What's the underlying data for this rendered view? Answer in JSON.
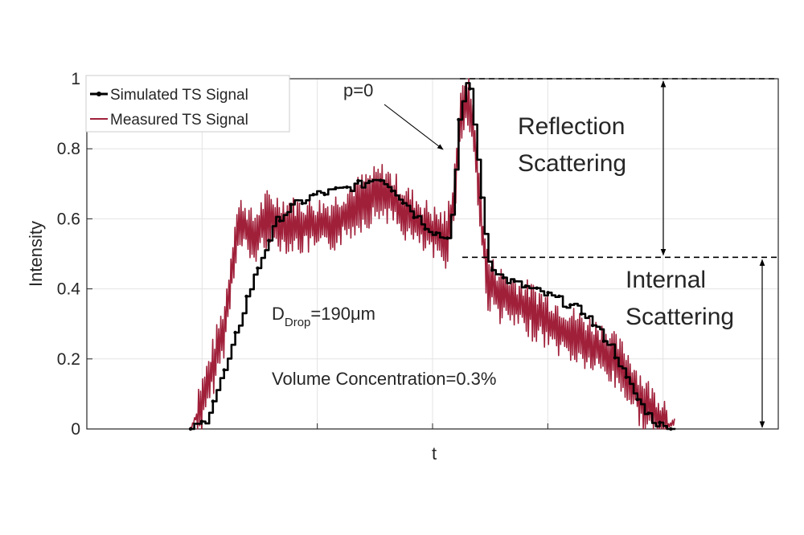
{
  "chart_data": {
    "type": "line",
    "xlabel": "t",
    "ylabel": "Intensity",
    "ylim": [
      0,
      1
    ],
    "yticks": [
      "0",
      "0.2",
      "0.4",
      "0.6",
      "0.8",
      "1"
    ],
    "grid": true,
    "legend_position": "top-left",
    "series": [
      {
        "name": "Simulated TS Signal",
        "color": "#000000",
        "marker": "dot",
        "anchors_t": [
          0.15,
          0.17,
          0.205,
          0.23,
          0.25,
          0.275,
          0.3,
          0.33,
          0.36,
          0.4,
          0.42,
          0.44,
          0.47,
          0.495,
          0.52,
          0.528,
          0.538,
          0.545,
          0.55,
          0.556,
          0.565,
          0.58,
          0.6,
          0.64,
          0.68,
          0.72,
          0.76,
          0.78,
          0.8,
          0.82,
          0.835,
          0.85
        ],
        "anchors_y": [
          0.0,
          0.02,
          0.2,
          0.37,
          0.48,
          0.6,
          0.64,
          0.67,
          0.68,
          0.7,
          0.72,
          0.69,
          0.62,
          0.57,
          0.54,
          0.62,
          0.88,
          0.96,
          1.0,
          0.95,
          0.75,
          0.48,
          0.43,
          0.4,
          0.37,
          0.33,
          0.23,
          0.14,
          0.07,
          0.02,
          0.003,
          0.0
        ]
      },
      {
        "name": "Measured TS Signal",
        "color": "#a0203a",
        "marker": "none",
        "anchors_t": [
          0.15,
          0.17,
          0.2,
          0.215,
          0.225,
          0.24,
          0.26,
          0.3,
          0.35,
          0.4,
          0.43,
          0.46,
          0.5,
          0.52,
          0.53,
          0.54,
          0.548,
          0.552,
          0.56,
          0.57,
          0.58,
          0.6,
          0.65,
          0.7,
          0.75,
          0.78,
          0.8,
          0.82,
          0.84,
          0.85
        ],
        "anchors_y": [
          0.0,
          0.09,
          0.3,
          0.55,
          0.59,
          0.54,
          0.6,
          0.58,
          0.58,
          0.65,
          0.68,
          0.62,
          0.56,
          0.54,
          0.65,
          0.87,
          0.95,
          0.93,
          0.85,
          0.6,
          0.42,
          0.38,
          0.33,
          0.27,
          0.22,
          0.16,
          0.09,
          0.04,
          0.01,
          0.02
        ]
      }
    ]
  },
  "annotations": {
    "p_label": "p=0",
    "reflection_line1": "Reflection",
    "reflection_line2": "Scattering",
    "internal_line1": "Internal",
    "internal_line2": "Scattering",
    "drop_prefix": "D",
    "drop_sub": "Drop",
    "drop_value": "=190μm",
    "volume": "Volume Concentration=0.3%",
    "reflection_top": 1.0,
    "reflection_bottom": 0.49
  }
}
